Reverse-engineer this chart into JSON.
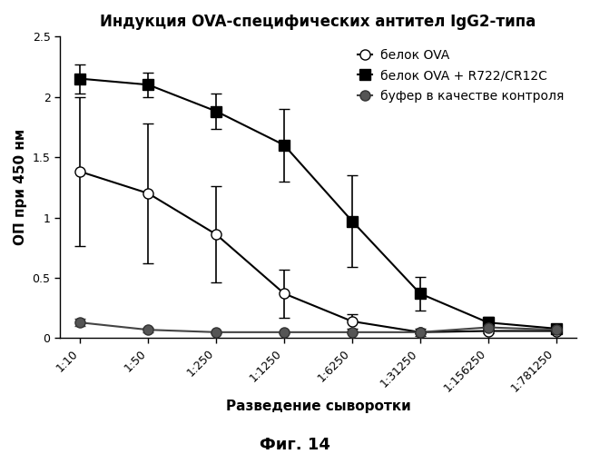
{
  "title": "Индукция OVA-специфических антител IgG2-типа",
  "xlabel": "Разведение сыворотки",
  "ylabel": "ОП при 450 нм",
  "caption": "Фиг. 14",
  "x_values": [
    10,
    50,
    250,
    1250,
    6250,
    31250,
    156250,
    781250
  ],
  "x_labels": [
    "1:10",
    "1:50",
    "1:250",
    "1:1250",
    "1:6250",
    "1:31250",
    "1:156250",
    "1:781250"
  ],
  "ylim": [
    0,
    2.5
  ],
  "yticks": [
    0.0,
    0.5,
    1.0,
    1.5,
    2.0,
    2.5
  ],
  "series": [
    {
      "label": "белок OVA",
      "y": [
        1.38,
        1.2,
        0.86,
        0.37,
        0.14,
        0.05,
        0.06,
        0.06
      ],
      "yerr": [
        0.62,
        0.58,
        0.4,
        0.2,
        0.06,
        0.03,
        0.02,
        0.02
      ],
      "color": "#000000",
      "marker": "o",
      "markerfacecolor": "white",
      "markeredgecolor": "#000000",
      "markersize": 8,
      "linewidth": 1.5
    },
    {
      "label": "белок OVA + R722/CR12C",
      "y": [
        2.15,
        2.1,
        1.88,
        1.6,
        0.97,
        0.37,
        0.13,
        0.08
      ],
      "yerr": [
        0.12,
        0.1,
        0.15,
        0.3,
        0.38,
        0.14,
        0.05,
        0.03
      ],
      "color": "#000000",
      "marker": "s",
      "markerfacecolor": "#000000",
      "markeredgecolor": "#000000",
      "markersize": 8,
      "linewidth": 1.5
    },
    {
      "label": "буфер в качестве контроля",
      "y": [
        0.13,
        0.07,
        0.05,
        0.05,
        0.05,
        0.05,
        0.09,
        0.07
      ],
      "yerr": [
        0.03,
        0.02,
        0.01,
        0.01,
        0.01,
        0.01,
        0.02,
        0.01
      ],
      "color": "#444444",
      "marker": "o",
      "markerfacecolor": "#555555",
      "markeredgecolor": "#333333",
      "markersize": 8,
      "linewidth": 1.5
    }
  ],
  "background_color": "#ffffff",
  "title_fontsize": 12,
  "axis_label_fontsize": 11,
  "tick_fontsize": 9,
  "legend_fontsize": 10,
  "caption_fontsize": 13
}
